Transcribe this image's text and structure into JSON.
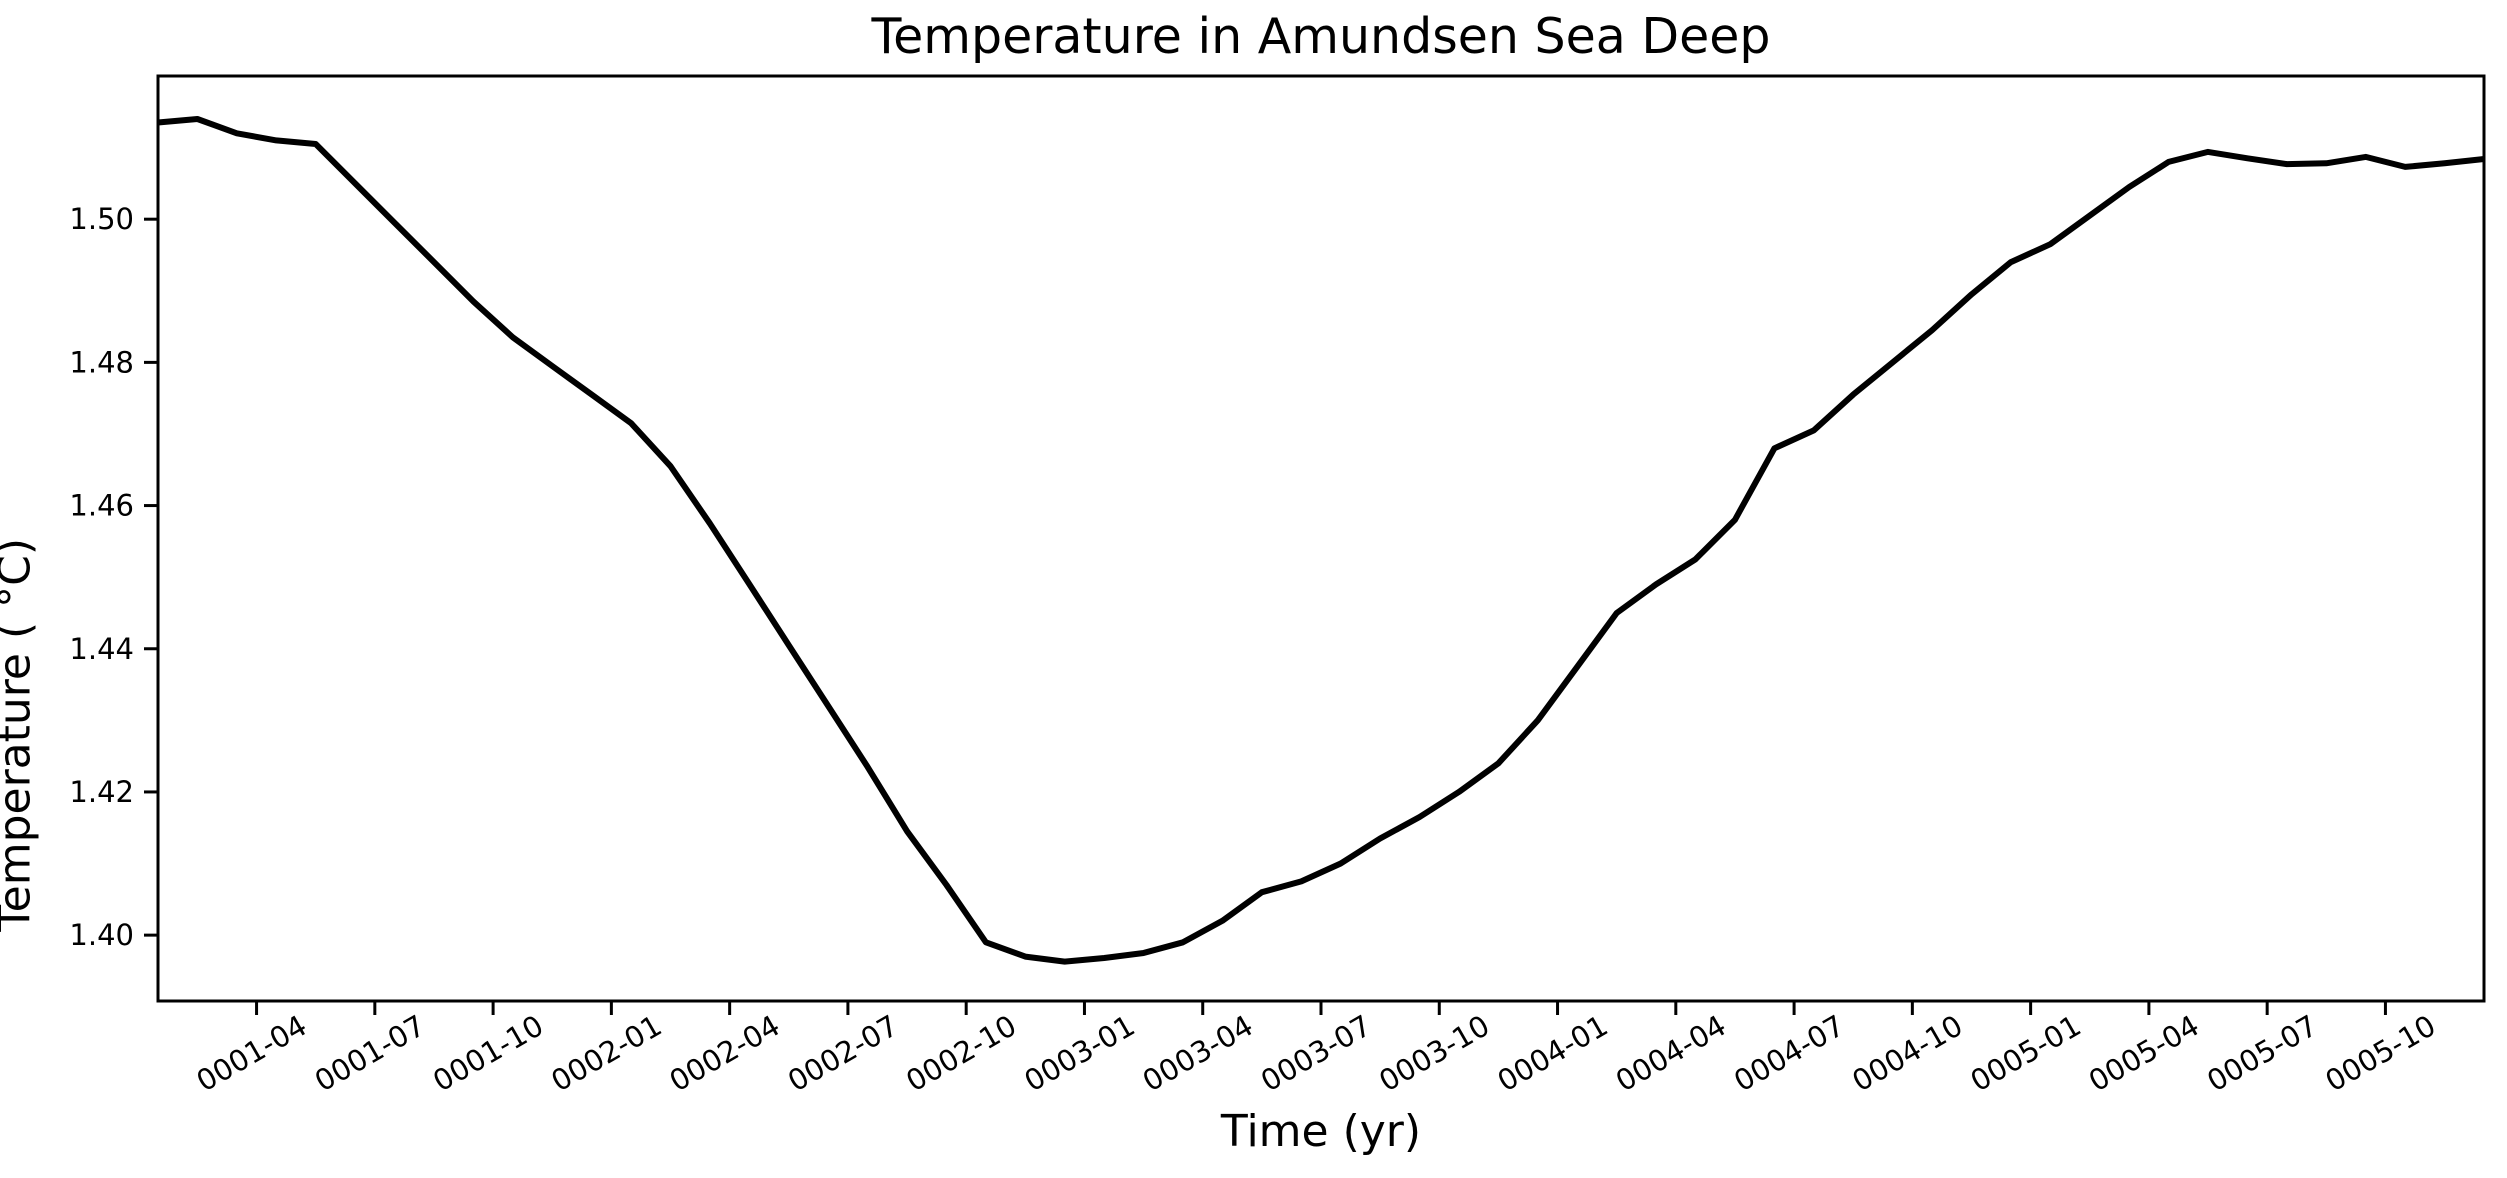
{
  "figure": {
    "background_color": "#ffffff",
    "text_color": "#000000"
  },
  "chart_data": {
    "type": "line",
    "title": "Temperature in Amundsen Sea Deep",
    "xlabel": "Time (yr)",
    "ylabel": "Temperature ( °C)",
    "grid": false,
    "legend": "none",
    "line_color": "#000000",
    "line_width": 6,
    "ylim": [
      1.3908,
      1.52
    ],
    "xlim": [
      "0001-01",
      "0005-12"
    ],
    "y_tick_labels": [
      "1.40",
      "1.42",
      "1.44",
      "1.46",
      "1.48",
      "1.50"
    ],
    "y_tick_values": [
      1.4,
      1.42,
      1.44,
      1.46,
      1.48,
      1.5
    ],
    "x_tick_labels": [
      "0001-04",
      "0001-07",
      "0001-10",
      "0002-01",
      "0002-04",
      "0002-07",
      "0002-10",
      "0003-01",
      "0003-04",
      "0003-07",
      "0003-10",
      "0004-01",
      "0004-04",
      "0004-07",
      "0004-10",
      "0005-01",
      "0005-04",
      "0005-07",
      "0005-10"
    ],
    "x_tick_rotation_deg": -30,
    "series": [
      {
        "name": "Temperature",
        "x": [
          "0001-01",
          "0001-02",
          "0001-03",
          "0001-04",
          "0001-05",
          "0001-06",
          "0001-07",
          "0001-08",
          "0001-09",
          "0001-10",
          "0001-11",
          "0001-12",
          "0002-01",
          "0002-02",
          "0002-03",
          "0002-04",
          "0002-05",
          "0002-06",
          "0002-07",
          "0002-08",
          "0002-09",
          "0002-10",
          "0002-11",
          "0002-12",
          "0003-01",
          "0003-02",
          "0003-03",
          "0003-04",
          "0003-05",
          "0003-06",
          "0003-07",
          "0003-08",
          "0003-09",
          "0003-10",
          "0003-11",
          "0003-12",
          "0004-01",
          "0004-02",
          "0004-03",
          "0004-04",
          "0004-05",
          "0004-06",
          "0004-07",
          "0004-08",
          "0004-09",
          "0004-10",
          "0004-11",
          "0004-12",
          "0005-01",
          "0005-02",
          "0005-03",
          "0005-04",
          "0005-05",
          "0005-06",
          "0005-07",
          "0005-08",
          "0005-09",
          "0005-10",
          "0005-11",
          "0005-12"
        ],
        "values": [
          1.5135,
          1.514,
          1.512,
          1.511,
          1.5105,
          1.505,
          1.4995,
          1.494,
          1.4885,
          1.4835,
          1.4795,
          1.4755,
          1.4715,
          1.4655,
          1.4575,
          1.449,
          1.4405,
          1.432,
          1.4235,
          1.4145,
          1.407,
          1.399,
          1.397,
          1.3963,
          1.3968,
          1.3975,
          1.399,
          1.402,
          1.406,
          1.4075,
          1.41,
          1.4135,
          1.4165,
          1.42,
          1.424,
          1.43,
          1.4375,
          1.445,
          1.449,
          1.4525,
          1.458,
          1.468,
          1.4705,
          1.4755,
          1.48,
          1.4845,
          1.4895,
          1.494,
          1.4965,
          1.5005,
          1.5045,
          1.508,
          1.5094,
          1.5085,
          1.5077,
          1.5078,
          1.5087,
          1.5073,
          1.5078,
          1.5084
        ]
      }
    ]
  }
}
